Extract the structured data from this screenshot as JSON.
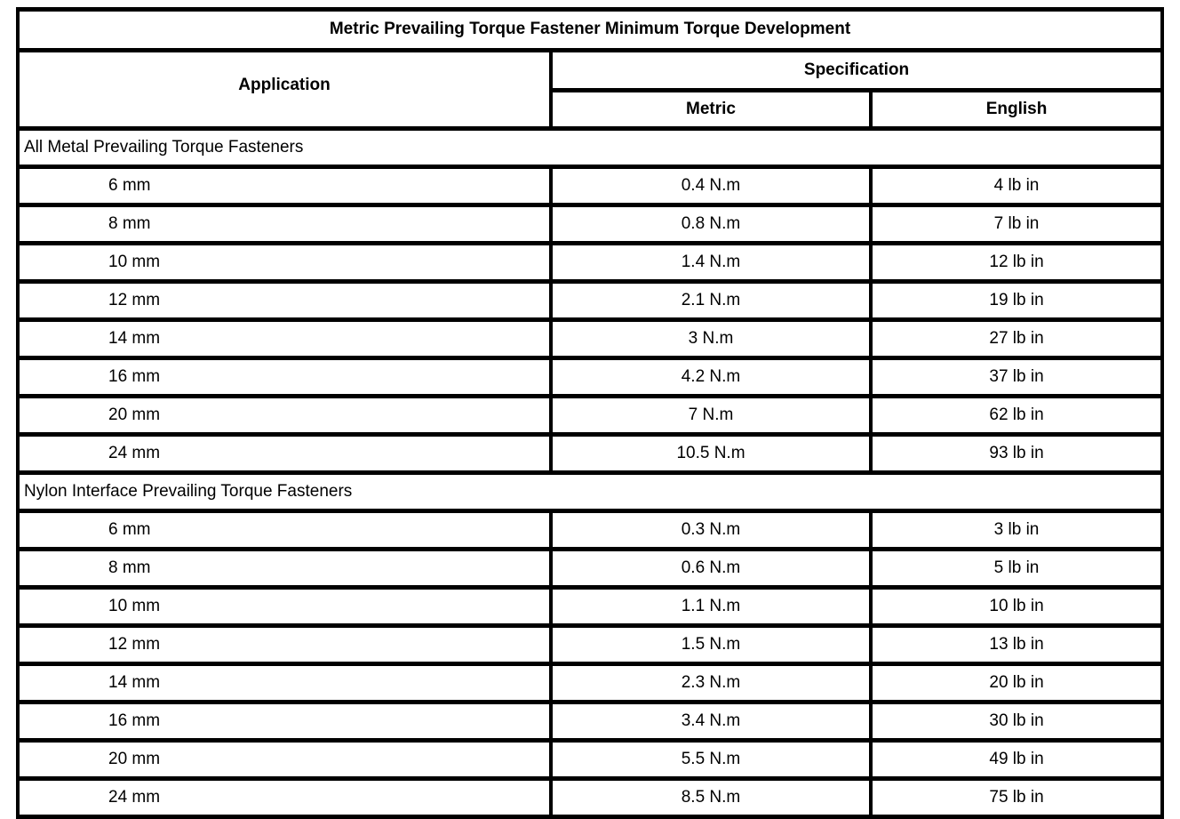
{
  "table": {
    "title": "Metric Prevailing Torque Fastener Minimum Torque Development",
    "columns": {
      "application": "Application",
      "specification": "Specification",
      "metric": "Metric",
      "english": "English"
    },
    "sections": [
      {
        "label": "All Metal Prevailing Torque Fasteners",
        "rows": [
          {
            "application": "6 mm",
            "metric": "0.4 N.m",
            "english": "4 lb in"
          },
          {
            "application": "8 mm",
            "metric": "0.8 N.m",
            "english": "7 lb in"
          },
          {
            "application": "10 mm",
            "metric": "1.4 N.m",
            "english": "12 lb in"
          },
          {
            "application": "12 mm",
            "metric": "2.1 N.m",
            "english": "19 lb in"
          },
          {
            "application": "14 mm",
            "metric": "3 N.m",
            "english": "27 lb in"
          },
          {
            "application": "16 mm",
            "metric": "4.2 N.m",
            "english": "37 lb in"
          },
          {
            "application": "20 mm",
            "metric": "7 N.m",
            "english": "62 lb in"
          },
          {
            "application": "24 mm",
            "metric": "10.5 N.m",
            "english": "93 lb in"
          }
        ]
      },
      {
        "label": "Nylon Interface Prevailing Torque Fasteners",
        "rows": [
          {
            "application": "6 mm",
            "metric": "0.3 N.m",
            "english": "3 lb in"
          },
          {
            "application": "8 mm",
            "metric": "0.6 N.m",
            "english": "5 lb in"
          },
          {
            "application": "10 mm",
            "metric": "1.1 N.m",
            "english": "10 lb in"
          },
          {
            "application": "12 mm",
            "metric": "1.5 N.m",
            "english": "13 lb in"
          },
          {
            "application": "14 mm",
            "metric": "2.3 N.m",
            "english": "20 lb in"
          },
          {
            "application": "16 mm",
            "metric": "3.4 N.m",
            "english": "30 lb in"
          },
          {
            "application": "20 mm",
            "metric": "5.5 N.m",
            "english": "49 lb in"
          },
          {
            "application": "24 mm",
            "metric": "8.5 N.m",
            "english": "75 lb in"
          }
        ]
      }
    ],
    "colors": {
      "border": "#000000",
      "background": "#ffffff",
      "text": "#000000"
    }
  }
}
